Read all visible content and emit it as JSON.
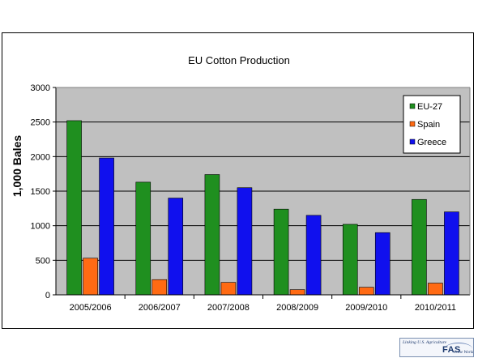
{
  "chart_data": {
    "type": "bar",
    "title": "EU Cotton Production",
    "xlabel": "",
    "ylabel": "1,000 Bales",
    "ylim": [
      0,
      3000
    ],
    "yticks": [
      "0",
      "500",
      "1000",
      "1500",
      "2000",
      "2500",
      "3000"
    ],
    "categories": [
      "2005/2006",
      "2006/2007",
      "2007/2008",
      "2008/2009",
      "2009/2010",
      "2010/2011"
    ],
    "series": [
      {
        "name": "EU-27",
        "color": "#1f8f1f",
        "values": [
          2520,
          1630,
          1740,
          1240,
          1020,
          1380
        ]
      },
      {
        "name": "Spain",
        "color": "#ff6a13",
        "values": [
          530,
          220,
          180,
          75,
          110,
          170
        ]
      },
      {
        "name": "Greece",
        "color": "#1010ee",
        "values": [
          1980,
          1400,
          1550,
          1150,
          900,
          1200
        ]
      }
    ],
    "grid": true,
    "legend_position": "top-right",
    "plot_background": "#c0c0c0"
  },
  "logo": {
    "tagline": "Linking U.S. Agriculture",
    "mark": "FAS",
    "tagline2": "to the World"
  }
}
